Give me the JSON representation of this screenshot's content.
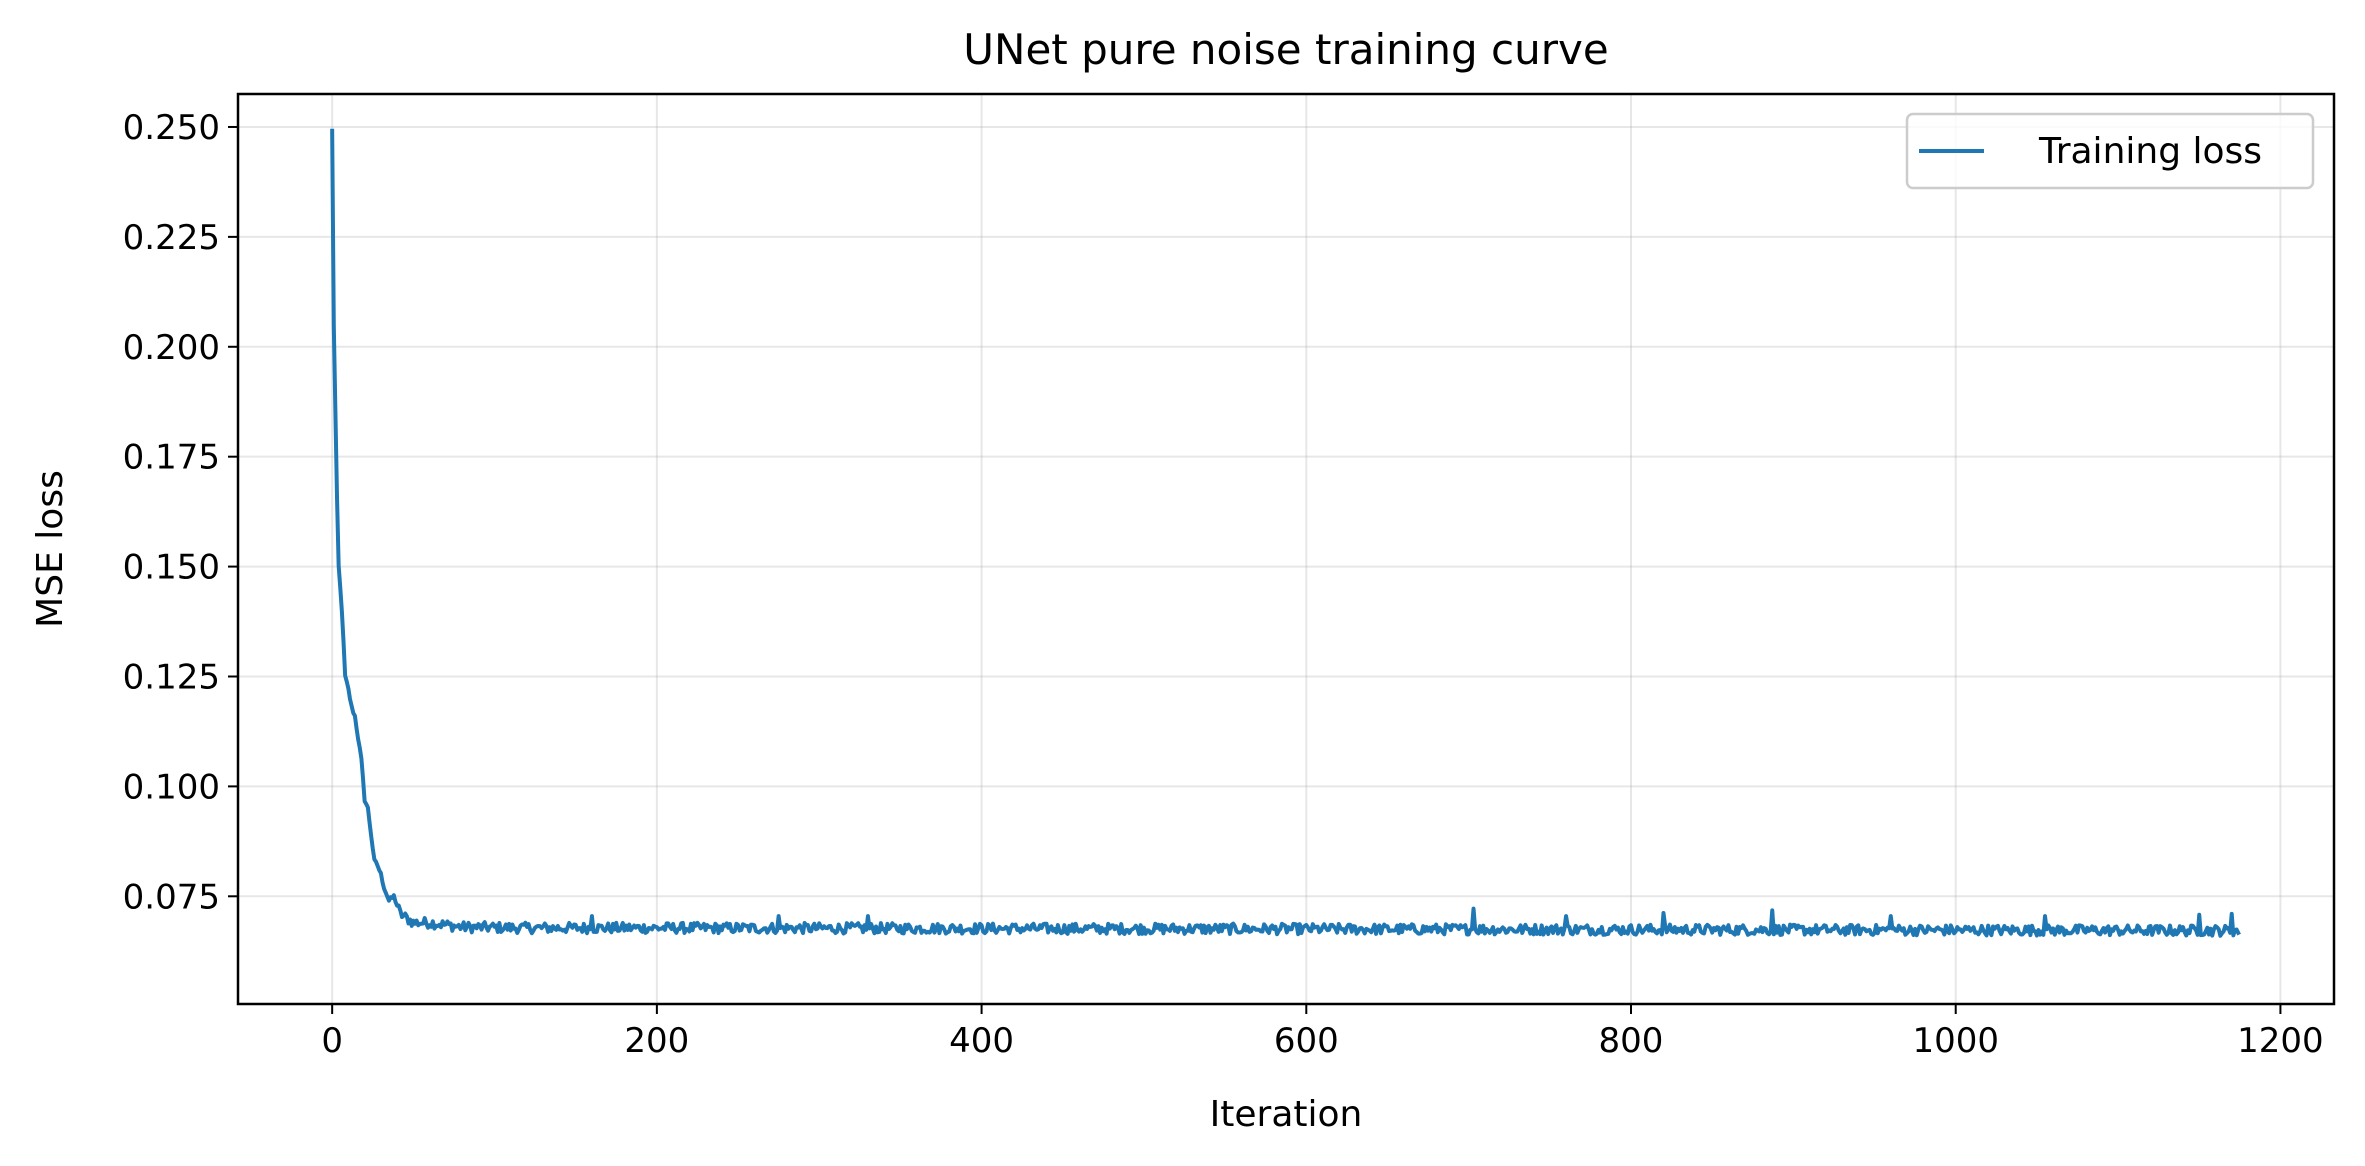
{
  "chart_data": {
    "type": "line",
    "title": "UNet pure noise training curve",
    "xlabel": "Iteration",
    "ylabel": "MSE loss",
    "xlim": [
      -58,
      1233
    ],
    "ylim": [
      0.0505,
      0.2575
    ],
    "xticks": [
      0,
      200,
      400,
      600,
      800,
      1000,
      1200
    ],
    "xtick_labels": [
      "0",
      "200",
      "400",
      "600",
      "800",
      "1000",
      "1200"
    ],
    "yticks": [
      0.075,
      0.1,
      0.125,
      0.15,
      0.175,
      0.2,
      0.225,
      0.25
    ],
    "ytick_labels": [
      "0.075",
      "0.100",
      "0.125",
      "0.150",
      "0.175",
      "0.200",
      "0.225",
      "0.250"
    ],
    "grid": true,
    "legend_position": "top-right",
    "series_color": "#1f77b4",
    "series": [
      {
        "name": "Training loss",
        "x_start": 0,
        "x_end": 1174,
        "anchors": [
          [
            0,
            0.249
          ],
          [
            1,
            0.205
          ],
          [
            2,
            0.185
          ],
          [
            3,
            0.165
          ],
          [
            4,
            0.15
          ],
          [
            6,
            0.14
          ],
          [
            8,
            0.125
          ],
          [
            10,
            0.122
          ],
          [
            12,
            0.118
          ],
          [
            14,
            0.116
          ],
          [
            16,
            0.111
          ],
          [
            18,
            0.106
          ],
          [
            20,
            0.097
          ],
          [
            22,
            0.095
          ],
          [
            24,
            0.089
          ],
          [
            26,
            0.083
          ],
          [
            28,
            0.082
          ],
          [
            30,
            0.08
          ],
          [
            32,
            0.077
          ],
          [
            35,
            0.074
          ],
          [
            38,
            0.075
          ],
          [
            42,
            0.071
          ],
          [
            46,
            0.07
          ],
          [
            50,
            0.069
          ],
          [
            60,
            0.069
          ],
          [
            80,
            0.068
          ],
          [
            120,
            0.0678
          ],
          [
            200,
            0.0678
          ],
          [
            1174,
            0.0672
          ]
        ],
        "noise_amplitude": 0.0012,
        "spikes": [
          [
            160,
            0.0705
          ],
          [
            275,
            0.0705
          ],
          [
            330,
            0.0705
          ],
          [
            703,
            0.0722
          ],
          [
            760,
            0.0705
          ],
          [
            820,
            0.0712
          ],
          [
            887,
            0.0718
          ],
          [
            960,
            0.0705
          ],
          [
            1055,
            0.0705
          ],
          [
            1150,
            0.0708
          ],
          [
            1170,
            0.071
          ]
        ],
        "values": []
      }
    ]
  }
}
